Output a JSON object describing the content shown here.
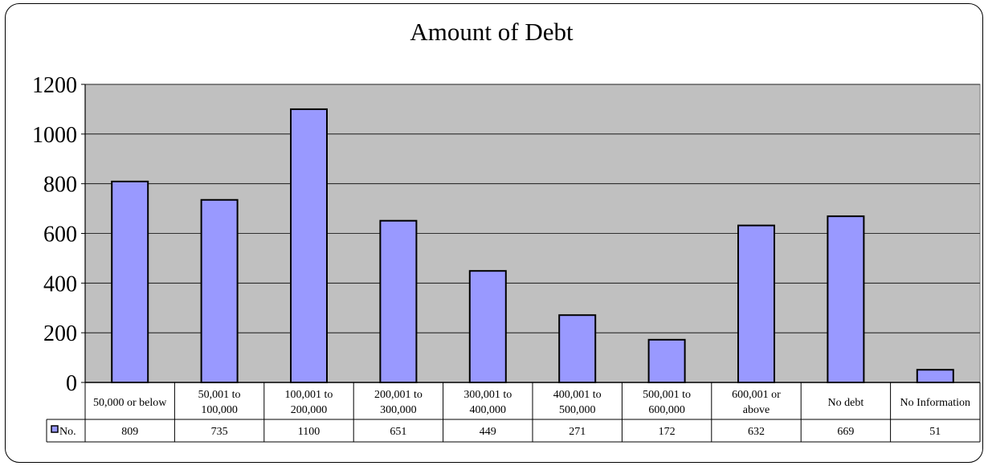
{
  "chart_data": {
    "type": "bar",
    "title": "Amount of Debt",
    "categories": [
      [
        "50,000 or below"
      ],
      [
        "50,001 to",
        "100,000"
      ],
      [
        "100,001 to",
        "200,000"
      ],
      [
        "200,001 to",
        "300,000"
      ],
      [
        "300,001 to",
        "400,000"
      ],
      [
        "400,001 to",
        "500,000"
      ],
      [
        "500,001 to",
        "600,000"
      ],
      [
        "600,001 or",
        "above"
      ],
      [
        "No debt"
      ],
      [
        "No Information"
      ]
    ],
    "series": [
      {
        "name": "No.",
        "values": [
          809,
          735,
          1100,
          651,
          449,
          271,
          172,
          632,
          669,
          51
        ],
        "color": "#9999ff"
      }
    ],
    "ylim": [
      0,
      1200
    ],
    "yticks": [
      0,
      200,
      400,
      600,
      800,
      1000,
      1200
    ],
    "grid": true,
    "plot_background": "#c0c0c0",
    "legend": "data-table"
  }
}
